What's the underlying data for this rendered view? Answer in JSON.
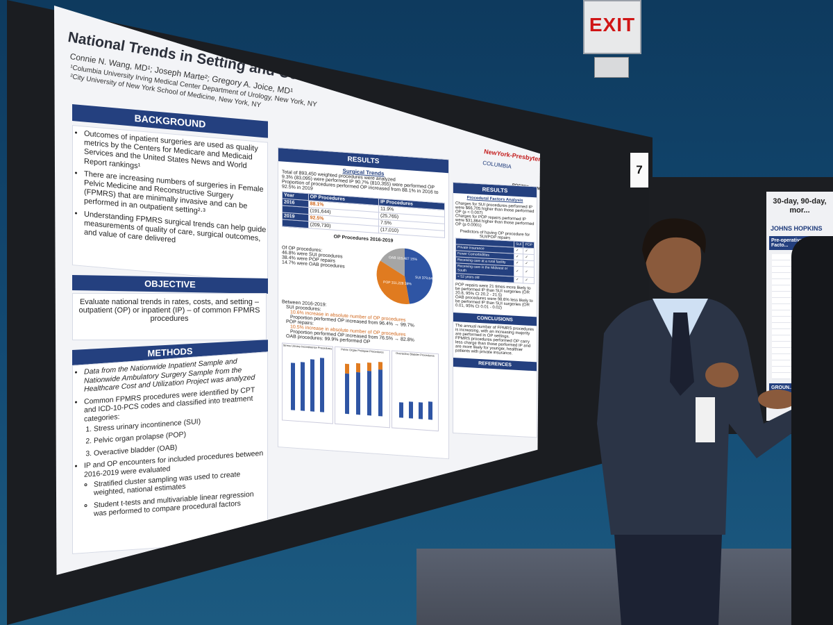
{
  "poster": {
    "title": "National Trends in Setting and Costs of Common Female Pelvic Medicine and Reconstructive Surgeries",
    "authors": "Connie N. Wang, MD¹; Joseph Marte²; Gregory A. Joice, MD¹",
    "affil1": "¹Columbia University Irving Medical Center Department of Urology, New York, NY",
    "affil2": "²City University of New York School of Medicine, New York, NY",
    "logo1": "NewYork-Presbyterian",
    "logo2": "COLUMBIA",
    "poster_number": "POSTER # OM32",
    "background": {
      "heading": "BACKGROUND",
      "items": [
        "Outcomes of inpatient surgeries are used as quality metrics by the Centers for Medicare and Medicaid Services and the United States News and World Report rankings¹",
        "There are increasing numbers of surgeries in Female Pelvic Medicine and Reconstructive Surgery (FPMRS) that are minimally invasive and can be performed in an outpatient setting²·³",
        "Understanding FPMRS surgical trends can help guide measurements of quality of care, surgical outcomes, and value of care delivered"
      ]
    },
    "objective": {
      "heading": "OBJECTIVE",
      "text": "Evaluate national trends in rates, costs, and setting – outpatient (OP) or inpatient (IP) – of common FPMRS procedures"
    },
    "methods": {
      "heading": "METHODS",
      "item1": "Data from the Nationwide Inpatient Sample and Nationwide Ambulatory Surgery Sample from the Healthcare Cost and Utilization Project was analyzed",
      "item2": "Common FPMRS procedures were identified by CPT and ICD-10-PCS codes and classified into treatment categories:",
      "categories": [
        "Stress urinary incontinence (SUI)",
        "Pelvic organ prolapse (POP)",
        "Overactive bladder (OAB)"
      ],
      "item3": "IP and OP encounters for included procedures between 2016-2019 were evaluated",
      "sub": [
        "Stratified cluster sampling was used to create weighted, national estimates",
        "Student t-tests and multivariable linear regression was performed to compare procedural factors"
      ]
    },
    "results": {
      "heading": "RESULTS",
      "subheading": "Surgical Trends",
      "line1": "Total of 893,450 weighted procedures were analyzed",
      "line2": "9.3% (83,095) were performed IP    90.7% (810,355) were performed OP",
      "line3": "Proportion of procedures performed OP increased from 88.1% in 2016 to 92.5% in 2019",
      "table_headers": [
        "Year",
        "OP Procedures",
        "IP Procedures"
      ],
      "table_rows": [
        [
          "2016",
          "88.1%",
          "11.9%"
        ],
        [
          "",
          "(191,644)",
          "(25,765)"
        ],
        [
          "2019",
          "92.5%",
          "7.5%"
        ],
        [
          "",
          "(209,730)",
          "(17,010)"
        ]
      ],
      "pie_title": "OP Procedures 2016-2019",
      "pie_labels": [
        "SUI 379,641 47%",
        "POP 311,228 38%",
        "OAB 119,487 15%"
      ],
      "op_intro": "Of OP procedures:",
      "op_items": [
        "46.8% were SUI procedures",
        "38.4% were POP repairs",
        "14.7% were OAB procedures"
      ],
      "between": "Between 2016-2019:",
      "sui_head": "SUI procedures:",
      "sui_items": [
        "10.6% increase in absolute number of OP procedures",
        "Proportion performed OP increased from 96.4% → 99.7%"
      ],
      "pop_head": "POP repairs:",
      "pop_items": [
        "10.5% increase in absolute number of OP procedures",
        "Proportion performed OP increased from 76.5% → 82.8%"
      ],
      "oab_line": "OAB procedures: 99.9% performed OP",
      "chart_titles": [
        "Stress Urinary Incontinence Procedures",
        "Pelvic Organ Prolapse Procedures",
        "Overactive Bladder Procedures"
      ]
    },
    "results2": {
      "heading": "RESULTS",
      "subheading": "Procedural Factors Analysis",
      "b1": "Charges for SUI procedures performed IP were $66,705 higher than those performed OP (p < 0.007)",
      "b2": "Charges for POP repairs performed IP were $31,864 higher than those performed OP (p 0.0001)",
      "pred": "Predictors of having OP procedure for SUI/POP repairs",
      "pred_headers": [
        "",
        "SUI",
        "POP"
      ],
      "pred_rows": [
        "Private insurance",
        "Fewer Comorbidities",
        "Receiving care at a rural facility",
        "Receiving care in the Midwest or South",
        "< 52 years old"
      ],
      "b3": "POP repairs were 21 times more likely to be performed IP than SUI surgeries (OR 20.8, 95% CI 20.2 - 21.5)",
      "b4": "OAB procedures were 98.6% less likely to be performed IP than SUI surgeries (OR 0.01, 95% CI 0.01 - 0.02)",
      "conclusions_heading": "CONCLUSIONS",
      "c1": "The annual number of FPMRS procedures is increasing, with an increasing majority are performed in OP settings.",
      "c2": "FPMRS procedures performed OP carry less charge than those performed IP and are more likely for younger, healthier patients with private insurance.",
      "references_heading": "REFERENCES"
    }
  },
  "signage": {
    "exit": "EXIT",
    "board_number": "7"
  },
  "right_poster": {
    "title": "30-day, 90-day, mor...",
    "logo": "JOHNS HOPKINS",
    "bar": "Pre-operative Risk Facto...",
    "bottom": "GROUN..."
  }
}
